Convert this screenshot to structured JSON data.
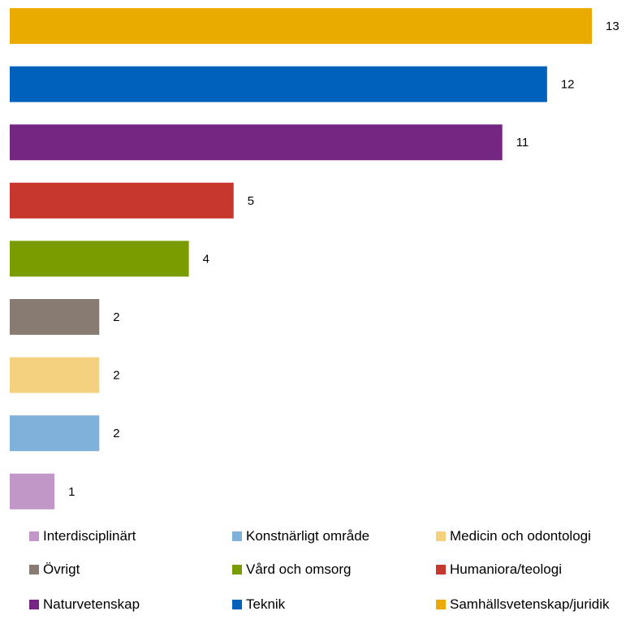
{
  "chart_data": {
    "type": "bar",
    "orientation": "horizontal",
    "title": "",
    "xlabel": "",
    "ylabel": "",
    "xlim": [
      0,
      13
    ],
    "grid": false,
    "legend_position": "bottom",
    "categories": [
      "Samhällsvetenskap/juridik",
      "Teknik",
      "Naturvetenskap",
      "Humaniora/teologi",
      "Vård och omsorg",
      "Övrigt",
      "Medicin och odontologi",
      "Konstnärligt område",
      "Interdisciplinärt"
    ],
    "values": [
      13,
      12,
      11,
      5,
      4,
      2,
      2,
      2,
      1
    ],
    "value_labels": [
      "13",
      "12",
      "11",
      "5",
      "4",
      "2",
      "2",
      "2",
      "1"
    ],
    "colors": [
      "#eaab00",
      "#0061bd",
      "#752683",
      "#c8372d",
      "#7a9c00",
      "#887b72",
      "#f3d17f",
      "#80b1da",
      "#c097c6"
    ]
  },
  "legend": {
    "items": [
      {
        "label": "Interdisciplinärt",
        "color": "#c097c6"
      },
      {
        "label": "Konstnärligt område",
        "color": "#80b1da"
      },
      {
        "label": "Medicin och odontologi",
        "color": "#f3d17f"
      },
      {
        "label": "Övrigt",
        "color": "#887b72"
      },
      {
        "label": "Vård och omsorg",
        "color": "#7a9c00"
      },
      {
        "label": "Humaniora/teologi",
        "color": "#c8372d"
      },
      {
        "label": "Naturvetenskap",
        "color": "#752683"
      },
      {
        "label": "Teknik",
        "color": "#0061bd"
      },
      {
        "label": "Samhällsvetenskap/juridik",
        "color": "#eaab00"
      }
    ]
  }
}
